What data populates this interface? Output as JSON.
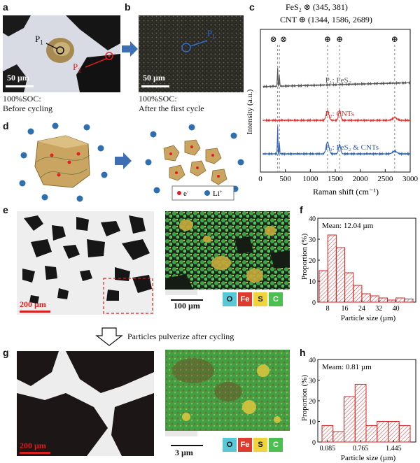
{
  "panels": {
    "a": {
      "label": "a",
      "scale": "50 µm",
      "p1": "P",
      "p1_sub": "1",
      "p2": "P",
      "p2_sub": "2",
      "caption_line1": "100%SOC:",
      "caption_line2": "Before cycling"
    },
    "b": {
      "label": "b",
      "scale": "50 µm",
      "p1": "P",
      "p1_sub": "1",
      "caption_line1": "100%SOC:",
      "caption_line2": "After the first cycle"
    },
    "c": {
      "label": "c"
    },
    "d": {
      "label": "d",
      "legend_electron": "e",
      "legend_electron_sup": "-",
      "legend_li": "Li",
      "legend_li_sup": "+"
    },
    "e": {
      "label": "e",
      "scale_left": "200 µm",
      "scale_right": "100 µm",
      "elements": [
        {
          "symbol": "O",
          "color": "#58c7d8"
        },
        {
          "symbol": "Fe",
          "color": "#e03a2e"
        },
        {
          "symbol": "S",
          "color": "#f1d43a"
        },
        {
          "symbol": "C",
          "color": "#4bbf4f"
        }
      ]
    },
    "f": {
      "label": "f"
    },
    "g": {
      "label": "g",
      "scale_left": "200 µm",
      "scale_right": "3 µm",
      "elements": [
        {
          "symbol": "O",
          "color": "#58c7d8"
        },
        {
          "symbol": "Fe",
          "color": "#e03a2e"
        },
        {
          "symbol": "S",
          "color": "#f1d43a"
        },
        {
          "symbol": "C",
          "color": "#4bbf4f"
        }
      ]
    },
    "h": {
      "label": "h"
    }
  },
  "transition": {
    "text": "Particles pulverize after cycling"
  },
  "chart_data": [
    {
      "id": "c",
      "type": "line",
      "xlabel": "Raman shift (cm⁻¹)",
      "ylabel": "Intensity (a.u.)",
      "xlim": [
        0,
        3000
      ],
      "xticks": [
        0,
        500,
        1000,
        1500,
        2000,
        2500,
        3000
      ],
      "annotation_fes2": "FeS₂ ⊗ (345, 381)",
      "annotation_cnt": "CNT ⊕ (1344, 1586, 2689)",
      "markers": [
        {
          "x": 345,
          "symbol": "⊗"
        },
        {
          "x": 381,
          "symbol": "⊗"
        },
        {
          "x": 1344,
          "symbol": "⊕"
        },
        {
          "x": 1586,
          "symbol": "⊕"
        },
        {
          "x": 2689,
          "symbol": "⊕"
        }
      ],
      "series": [
        {
          "name": "P₁: FeS₂",
          "color": "#555555",
          "offset": 2.0,
          "peaks": [
            {
              "x": 345,
              "h": 0.55,
              "w": 8
            },
            {
              "x": 381,
              "h": 0.35,
              "w": 8
            }
          ]
        },
        {
          "name": "P₂: CNTs",
          "color": "#e8302a",
          "offset": 1.0,
          "peaks": [
            {
              "x": 1344,
              "h": 0.28,
              "w": 40
            },
            {
              "x": 1586,
              "h": 0.3,
              "w": 30
            },
            {
              "x": 2689,
              "h": 0.08,
              "w": 60
            }
          ]
        },
        {
          "name": "P₃: FeS₂ & CNTs",
          "color": "#2f63b8",
          "offset": 0.0,
          "peaks": [
            {
              "x": 345,
              "h": 0.85,
              "w": 7
            },
            {
              "x": 381,
              "h": 0.4,
              "w": 7
            },
            {
              "x": 1344,
              "h": 0.35,
              "w": 40
            },
            {
              "x": 1586,
              "h": 0.28,
              "w": 30
            },
            {
              "x": 2689,
              "h": 0.08,
              "w": 60
            }
          ]
        }
      ]
    },
    {
      "id": "f",
      "type": "bar",
      "annotation": "Mean: 12.04 µm",
      "xlabel": "Particle size (µm)",
      "ylabel": "Proportion (%)",
      "ylim": [
        0,
        40
      ],
      "yticks": [
        0,
        10,
        20,
        30,
        40
      ],
      "xticks": [
        "8",
        "16",
        "24",
        "32",
        "40"
      ],
      "bin_start": 4,
      "bin_width": 4,
      "values": [
        15,
        32,
        26,
        14,
        8,
        4,
        3,
        2,
        1,
        2,
        1.5
      ]
    },
    {
      "id": "h",
      "type": "bar",
      "annotation": "Meam: 0.81 µm",
      "xlabel": "Particle size (µm)",
      "ylabel": "Proportion (%)",
      "ylim": [
        0,
        40
      ],
      "yticks": [
        0,
        10,
        20,
        30,
        40
      ],
      "xticks": [
        "0.085",
        "0.765",
        "1.445"
      ],
      "values": [
        8,
        5,
        22,
        28,
        8,
        10,
        10,
        8
      ]
    }
  ]
}
